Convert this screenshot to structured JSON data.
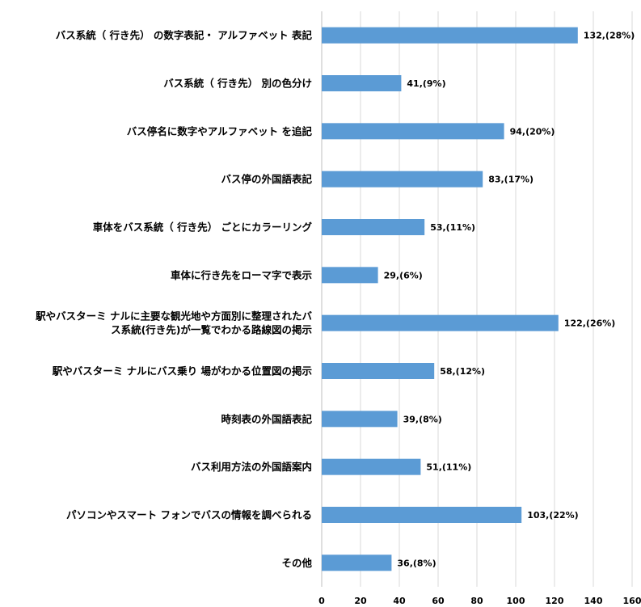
{
  "chart_data": {
    "type": "bar",
    "orientation": "horizontal",
    "title": "",
    "xlabel": "",
    "ylabel": "",
    "xlim": [
      0,
      160
    ],
    "x_ticks": [
      0,
      20,
      40,
      60,
      80,
      100,
      120,
      140,
      160
    ],
    "grid": "vertical",
    "legend": "none",
    "bar_color": "#5B9BD5",
    "categories": [
      [
        "バス系統（ 行き先） の数字表記・ アルファベット 表記"
      ],
      [
        "バス系統（ 行き先） 別の色分け"
      ],
      [
        "バス停名に数字やアルファベット を追記"
      ],
      [
        "バス停の外国語表記"
      ],
      [
        "車体をバス系統（ 行き先） ごとにカラーリング"
      ],
      [
        "車体に行き先をローマ字で表示"
      ],
      [
        "駅やバスターミ ナルに主要な観光地や方面別に整理されたバ",
        "ス系統(行き先)が一覧でわかる路線図の掲示"
      ],
      [
        "駅やバスターミ ナルにバス乗り 場がわかる位置図の掲示"
      ],
      [
        "時刻表の外国語表記"
      ],
      [
        "バス利用方法の外国語案内"
      ],
      [
        "パソコンやスマート フォンでバスの情報を調べられる"
      ],
      [
        "その他"
      ]
    ],
    "values": [
      132,
      41,
      94,
      83,
      53,
      29,
      122,
      58,
      39,
      51,
      103,
      36
    ],
    "data_labels": [
      "132,(28%)",
      "41,(9%)",
      "94,(20%)",
      "83,(17%)",
      "53,(11%)",
      "29,(6%)",
      "122,(26%)",
      "58,(12%)",
      "39,(8%)",
      "51,(11%)",
      "103,(22%)",
      "36,(8%)"
    ]
  }
}
